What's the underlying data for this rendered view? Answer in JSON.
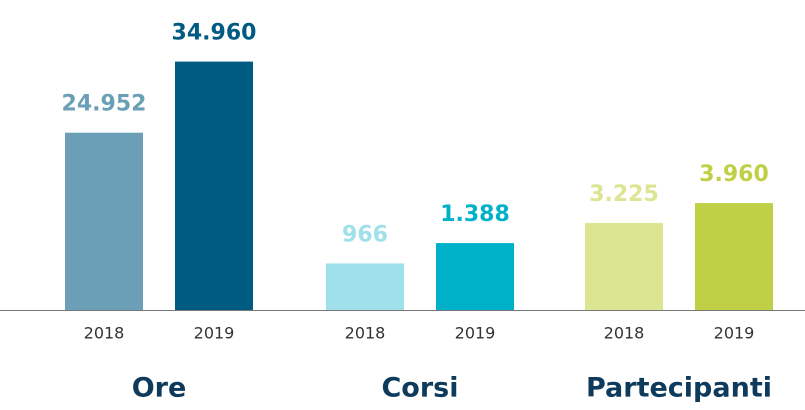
{
  "chart_data": [
    {
      "type": "bar",
      "title": "Ore",
      "categories": [
        "2018",
        "2019"
      ],
      "values": [
        24952,
        34960
      ],
      "value_labels": [
        "24.952",
        "34.960"
      ],
      "colors": [
        "#6a9fb7",
        "#005b82"
      ],
      "ylim": [
        0,
        38000
      ]
    },
    {
      "type": "bar",
      "title": "Corsi",
      "categories": [
        "2018",
        "2019"
      ],
      "values": [
        966,
        1388
      ],
      "value_labels": [
        "966",
        "1.388"
      ],
      "colors": [
        "#9fe0ea",
        "#00b2c9"
      ],
      "ylim": [
        0,
        5600
      ]
    },
    {
      "type": "bar",
      "title": "Partecipanti",
      "categories": [
        "2018",
        "2019"
      ],
      "values": [
        3225,
        3960
      ],
      "value_labels": [
        "3.225",
        "3.960"
      ],
      "colors": [
        "#dbe592",
        "#bfd047"
      ],
      "ylim": [
        0,
        10000
      ]
    }
  ]
}
